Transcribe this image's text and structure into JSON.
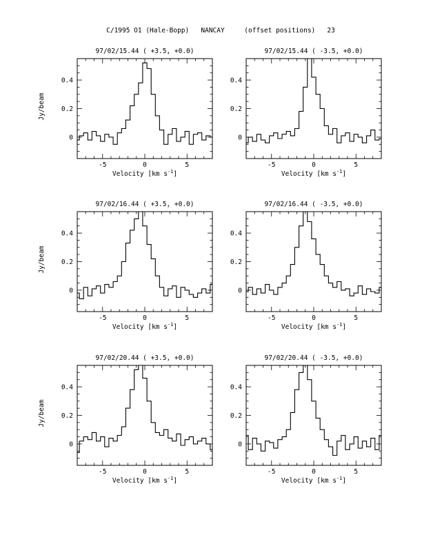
{
  "header": {
    "title": "C/1995 O1 (Hale-Bopp)   NANCAY     (offset positions)   23"
  },
  "chart_data": [
    {
      "type": "line",
      "title": "97/02/15.44  ( +3.5, +0.0)",
      "xlabel": "Velocity [km s",
      "xlabel_exp": "-1",
      "xlabel_close": "]",
      "ylabel": "Jy/beam",
      "xlim": [
        -8,
        8
      ],
      "ylim": [
        -0.15,
        0.55
      ],
      "xticks": [
        -5,
        0,
        5
      ],
      "yticks": [
        0,
        0.2,
        0.4
      ],
      "x": [
        -8.0,
        -7.5,
        -7.0,
        -6.5,
        -6.0,
        -5.5,
        -5.0,
        -4.5,
        -4.0,
        -3.5,
        -3.0,
        -2.5,
        -2.0,
        -1.5,
        -1.0,
        -0.5,
        0.0,
        0.5,
        1.0,
        1.5,
        2.0,
        2.5,
        3.0,
        3.5,
        4.0,
        4.5,
        5.0,
        5.5,
        6.0,
        6.5,
        7.0,
        7.5,
        8.0
      ],
      "y": [
        -0.02,
        0.01,
        0.03,
        -0.02,
        0.04,
        0.01,
        -0.03,
        0.02,
        0.0,
        -0.05,
        0.03,
        0.06,
        0.12,
        0.22,
        0.3,
        0.38,
        0.52,
        0.48,
        0.3,
        0.15,
        0.05,
        -0.05,
        0.02,
        0.06,
        -0.03,
        0.0,
        0.04,
        -0.05,
        0.02,
        0.03,
        -0.02,
        0.01,
        0.0
      ]
    },
    {
      "type": "line",
      "title": "97/02/15.44  ( -3.5, +0.0)",
      "xlabel": "Velocity [km s",
      "xlabel_exp": "-1",
      "xlabel_close": "]",
      "ylabel": "",
      "xlim": [
        -8,
        8
      ],
      "ylim": [
        -0.15,
        0.55
      ],
      "xticks": [
        -5,
        0,
        5
      ],
      "yticks": [
        0,
        0.2,
        0.4
      ],
      "x": [
        -8.0,
        -7.5,
        -7.0,
        -6.5,
        -6.0,
        -5.5,
        -5.0,
        -4.5,
        -4.0,
        -3.5,
        -3.0,
        -2.5,
        -2.0,
        -1.5,
        -1.0,
        -0.5,
        0.0,
        0.5,
        1.0,
        1.5,
        2.0,
        2.5,
        3.0,
        3.5,
        4.0,
        4.5,
        5.0,
        5.5,
        6.0,
        6.5,
        7.0,
        7.5,
        8.0
      ],
      "y": [
        -0.04,
        0.0,
        -0.03,
        0.02,
        -0.02,
        -0.04,
        0.01,
        0.03,
        -0.01,
        0.02,
        0.04,
        0.01,
        0.06,
        0.18,
        0.35,
        0.55,
        0.42,
        0.3,
        0.2,
        0.08,
        0.02,
        0.06,
        -0.04,
        0.01,
        0.03,
        -0.03,
        0.02,
        0.0,
        -0.04,
        0.01,
        0.05,
        -0.02,
        -0.01
      ]
    },
    {
      "type": "line",
      "title": "97/02/16.44  ( +3.5, +0.0)",
      "xlabel": "Velocity [km s",
      "xlabel_exp": "-1",
      "xlabel_close": "]",
      "ylabel": "Jy/beam",
      "xlim": [
        -8,
        8
      ],
      "ylim": [
        -0.15,
        0.55
      ],
      "xticks": [
        -5,
        0,
        5
      ],
      "yticks": [
        0,
        0.2,
        0.4
      ],
      "x": [
        -8.0,
        -7.5,
        -7.0,
        -6.5,
        -6.0,
        -5.5,
        -5.0,
        -4.5,
        -4.0,
        -3.5,
        -3.0,
        -2.5,
        -2.0,
        -1.5,
        -1.0,
        -0.5,
        0.0,
        0.5,
        1.0,
        1.5,
        2.0,
        2.5,
        3.0,
        3.5,
        4.0,
        4.5,
        5.0,
        5.5,
        6.0,
        6.5,
        7.0,
        7.5,
        8.0
      ],
      "y": [
        -0.02,
        -0.06,
        0.02,
        -0.04,
        0.01,
        0.03,
        -0.02,
        0.04,
        0.02,
        0.06,
        0.1,
        0.2,
        0.33,
        0.42,
        0.5,
        0.55,
        0.45,
        0.32,
        0.22,
        0.1,
        0.02,
        -0.04,
        0.01,
        0.03,
        -0.05,
        0.02,
        0.0,
        -0.03,
        -0.05,
        -0.02,
        0.01,
        -0.02,
        0.04
      ]
    },
    {
      "type": "line",
      "title": "97/02/16.44  ( -3.5, +0.0)",
      "xlabel": "Velocity [km s",
      "xlabel_exp": "-1",
      "xlabel_close": "]",
      "ylabel": "",
      "xlim": [
        -8,
        8
      ],
      "ylim": [
        -0.15,
        0.55
      ],
      "xticks": [
        -5,
        0,
        5
      ],
      "yticks": [
        0,
        0.2,
        0.4
      ],
      "x": [
        -8.0,
        -7.5,
        -7.0,
        -6.5,
        -6.0,
        -5.5,
        -5.0,
        -4.5,
        -4.0,
        -3.5,
        -3.0,
        -2.5,
        -2.0,
        -1.5,
        -1.0,
        -0.5,
        0.0,
        0.5,
        1.0,
        1.5,
        2.0,
        2.5,
        3.0,
        3.5,
        4.0,
        4.5,
        5.0,
        5.5,
        6.0,
        6.5,
        7.0,
        7.5,
        8.0
      ],
      "y": [
        -0.01,
        0.02,
        -0.03,
        0.01,
        -0.02,
        0.04,
        0.0,
        -0.03,
        0.02,
        0.05,
        0.1,
        0.18,
        0.3,
        0.45,
        0.55,
        0.48,
        0.36,
        0.25,
        0.18,
        0.1,
        0.05,
        0.02,
        0.06,
        0.0,
        0.01,
        -0.04,
        -0.02,
        0.03,
        -0.03,
        0.01,
        -0.01,
        -0.02,
        0.02
      ]
    },
    {
      "type": "line",
      "title": "97/02/20.44  ( +3.5, +0.0)",
      "xlabel": "Velocity [km s",
      "xlabel_exp": "-1",
      "xlabel_close": "]",
      "ylabel": "Jy/beam",
      "xlim": [
        -8,
        8
      ],
      "ylim": [
        -0.15,
        0.55
      ],
      "xticks": [
        -5,
        0,
        5
      ],
      "yticks": [
        0,
        0.2,
        0.4
      ],
      "x": [
        -8.0,
        -7.5,
        -7.0,
        -6.5,
        -6.0,
        -5.5,
        -5.0,
        -4.5,
        -4.0,
        -3.5,
        -3.0,
        -2.5,
        -2.0,
        -1.5,
        -1.0,
        -0.5,
        0.0,
        0.5,
        1.0,
        1.5,
        2.0,
        2.5,
        3.0,
        3.5,
        4.0,
        4.5,
        5.0,
        5.5,
        6.0,
        6.5,
        7.0,
        7.5,
        8.0
      ],
      "y": [
        -0.06,
        0.02,
        0.05,
        0.03,
        0.08,
        0.02,
        0.05,
        -0.02,
        0.04,
        0.02,
        0.06,
        0.12,
        0.25,
        0.38,
        0.52,
        0.55,
        0.46,
        0.3,
        0.15,
        0.08,
        0.06,
        0.1,
        0.04,
        0.02,
        0.07,
        -0.01,
        0.03,
        0.05,
        0.0,
        0.02,
        0.04,
        0.0,
        -0.04
      ]
    },
    {
      "type": "line",
      "title": "97/02/20.44  ( -3.5, +0.0)",
      "xlabel": "Velocity [km s",
      "xlabel_exp": "-1",
      "xlabel_close": "]",
      "ylabel": "",
      "xlim": [
        -8,
        8
      ],
      "ylim": [
        -0.15,
        0.55
      ],
      "xticks": [
        -5,
        0,
        5
      ],
      "yticks": [
        0,
        0.2,
        0.4
      ],
      "x": [
        -8.0,
        -7.5,
        -7.0,
        -6.5,
        -6.0,
        -5.5,
        -5.0,
        -4.5,
        -4.0,
        -3.5,
        -3.0,
        -2.5,
        -2.0,
        -1.5,
        -1.0,
        -0.5,
        0.0,
        0.5,
        1.0,
        1.5,
        2.0,
        2.5,
        3.0,
        3.5,
        4.0,
        4.5,
        5.0,
        5.5,
        6.0,
        6.5,
        7.0,
        7.5,
        8.0
      ],
      "y": [
        0.06,
        -0.04,
        0.04,
        0.0,
        -0.05,
        0.02,
        0.01,
        -0.03,
        0.03,
        0.05,
        0.1,
        0.22,
        0.38,
        0.5,
        0.55,
        0.45,
        0.3,
        0.18,
        0.1,
        0.03,
        -0.02,
        -0.08,
        0.02,
        0.06,
        -0.04,
        0.0,
        0.05,
        -0.03,
        0.02,
        -0.02,
        0.04,
        -0.04,
        0.06
      ]
    }
  ]
}
